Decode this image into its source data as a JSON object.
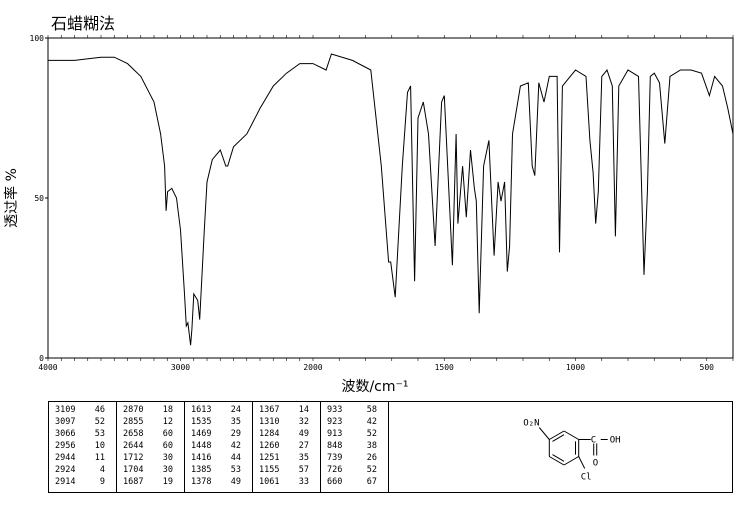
{
  "method": "石蜡糊法",
  "chart_data": {
    "type": "line",
    "title": "",
    "xlabel": "波数/cm⁻¹",
    "ylabel": "透过率 %",
    "xlim": [
      4000,
      400
    ],
    "ylim": [
      0,
      100
    ],
    "x_ticks": [
      "4000",
      "3000",
      "2000",
      "1500",
      "1000",
      "500"
    ],
    "y_ticks": [
      "100",
      "50",
      "0"
    ],
    "series": [
      {
        "points": [
          [
            4000,
            93
          ],
          [
            3800,
            93
          ],
          [
            3600,
            94
          ],
          [
            3500,
            94
          ],
          [
            3400,
            92
          ],
          [
            3300,
            88
          ],
          [
            3200,
            80
          ],
          [
            3150,
            70
          ],
          [
            3120,
            60
          ],
          [
            3109,
            46
          ],
          [
            3097,
            52
          ],
          [
            3066,
            53
          ],
          [
            3030,
            50
          ],
          [
            3000,
            40
          ],
          [
            2970,
            20
          ],
          [
            2956,
            10
          ],
          [
            2944,
            11
          ],
          [
            2924,
            4
          ],
          [
            2914,
            9
          ],
          [
            2900,
            20
          ],
          [
            2870,
            18
          ],
          [
            2855,
            12
          ],
          [
            2820,
            40
          ],
          [
            2800,
            55
          ],
          [
            2760,
            62
          ],
          [
            2700,
            65
          ],
          [
            2658,
            60
          ],
          [
            2644,
            60
          ],
          [
            2600,
            66
          ],
          [
            2500,
            70
          ],
          [
            2400,
            78
          ],
          [
            2300,
            85
          ],
          [
            2200,
            89
          ],
          [
            2100,
            92
          ],
          [
            2000,
            92
          ],
          [
            1950,
            90
          ],
          [
            1930,
            95
          ],
          [
            1850,
            93
          ],
          [
            1780,
            90
          ],
          [
            1740,
            60
          ],
          [
            1712,
            30
          ],
          [
            1704,
            30
          ],
          [
            1687,
            19
          ],
          [
            1660,
            60
          ],
          [
            1640,
            83
          ],
          [
            1628,
            85
          ],
          [
            1613,
            24
          ],
          [
            1600,
            75
          ],
          [
            1580,
            80
          ],
          [
            1560,
            70
          ],
          [
            1535,
            35
          ],
          [
            1510,
            80
          ],
          [
            1500,
            82
          ],
          [
            1469,
            29
          ],
          [
            1455,
            70
          ],
          [
            1448,
            42
          ],
          [
            1430,
            60
          ],
          [
            1416,
            44
          ],
          [
            1400,
            65
          ],
          [
            1385,
            53
          ],
          [
            1378,
            49
          ],
          [
            1367,
            14
          ],
          [
            1350,
            60
          ],
          [
            1330,
            68
          ],
          [
            1310,
            32
          ],
          [
            1295,
            55
          ],
          [
            1284,
            49
          ],
          [
            1270,
            55
          ],
          [
            1260,
            27
          ],
          [
            1251,
            35
          ],
          [
            1240,
            70
          ],
          [
            1210,
            85
          ],
          [
            1180,
            86
          ],
          [
            1165,
            60
          ],
          [
            1155,
            57
          ],
          [
            1140,
            86
          ],
          [
            1120,
            80
          ],
          [
            1100,
            88
          ],
          [
            1070,
            88
          ],
          [
            1061,
            33
          ],
          [
            1050,
            85
          ],
          [
            1000,
            90
          ],
          [
            960,
            88
          ],
          [
            945,
            68
          ],
          [
            933,
            58
          ],
          [
            923,
            42
          ],
          [
            913,
            52
          ],
          [
            900,
            88
          ],
          [
            880,
            90
          ],
          [
            860,
            85
          ],
          [
            848,
            38
          ],
          [
            835,
            85
          ],
          [
            800,
            90
          ],
          [
            760,
            88
          ],
          [
            739,
            26
          ],
          [
            726,
            52
          ],
          [
            715,
            88
          ],
          [
            700,
            89
          ],
          [
            680,
            86
          ],
          [
            660,
            67
          ],
          [
            640,
            88
          ],
          [
            600,
            90
          ],
          [
            560,
            90
          ],
          [
            520,
            89
          ],
          [
            490,
            82
          ],
          [
            470,
            88
          ],
          [
            440,
            85
          ],
          [
            420,
            78
          ],
          [
            400,
            70
          ]
        ]
      }
    ]
  },
  "peak_table": {
    "columns": [
      [
        [
          "3109",
          "46"
        ],
        [
          "3097",
          "52"
        ],
        [
          "3066",
          "53"
        ],
        [
          "2956",
          "10"
        ],
        [
          "2944",
          "11"
        ],
        [
          "2924",
          "4"
        ],
        [
          "2914",
          "9"
        ]
      ],
      [
        [
          "2870",
          "18"
        ],
        [
          "2855",
          "12"
        ],
        [
          "2658",
          "60"
        ],
        [
          "2644",
          "60"
        ],
        [
          "1712",
          "30"
        ],
        [
          "1704",
          "30"
        ],
        [
          "1687",
          "19"
        ]
      ],
      [
        [
          "1613",
          "24"
        ],
        [
          "1535",
          "35"
        ],
        [
          "1469",
          "29"
        ],
        [
          "1448",
          "42"
        ],
        [
          "1416",
          "44"
        ],
        [
          "1385",
          "53"
        ],
        [
          "1378",
          "49"
        ]
      ],
      [
        [
          "1367",
          "14"
        ],
        [
          "1310",
          "32"
        ],
        [
          "1284",
          "49"
        ],
        [
          "1260",
          "27"
        ],
        [
          "1251",
          "35"
        ],
        [
          "1155",
          "57"
        ],
        [
          "1061",
          "33"
        ]
      ],
      [
        [
          "933",
          "58"
        ],
        [
          "923",
          "42"
        ],
        [
          "913",
          "52"
        ],
        [
          "848",
          "38"
        ],
        [
          "739",
          "26"
        ],
        [
          "726",
          "52"
        ],
        [
          "660",
          "67"
        ]
      ]
    ]
  },
  "structure": {
    "nitro": "O₂N",
    "carbonyl_o": "O",
    "hydroxyl": "OH",
    "carbon": "C",
    "chloro": "Cl"
  }
}
